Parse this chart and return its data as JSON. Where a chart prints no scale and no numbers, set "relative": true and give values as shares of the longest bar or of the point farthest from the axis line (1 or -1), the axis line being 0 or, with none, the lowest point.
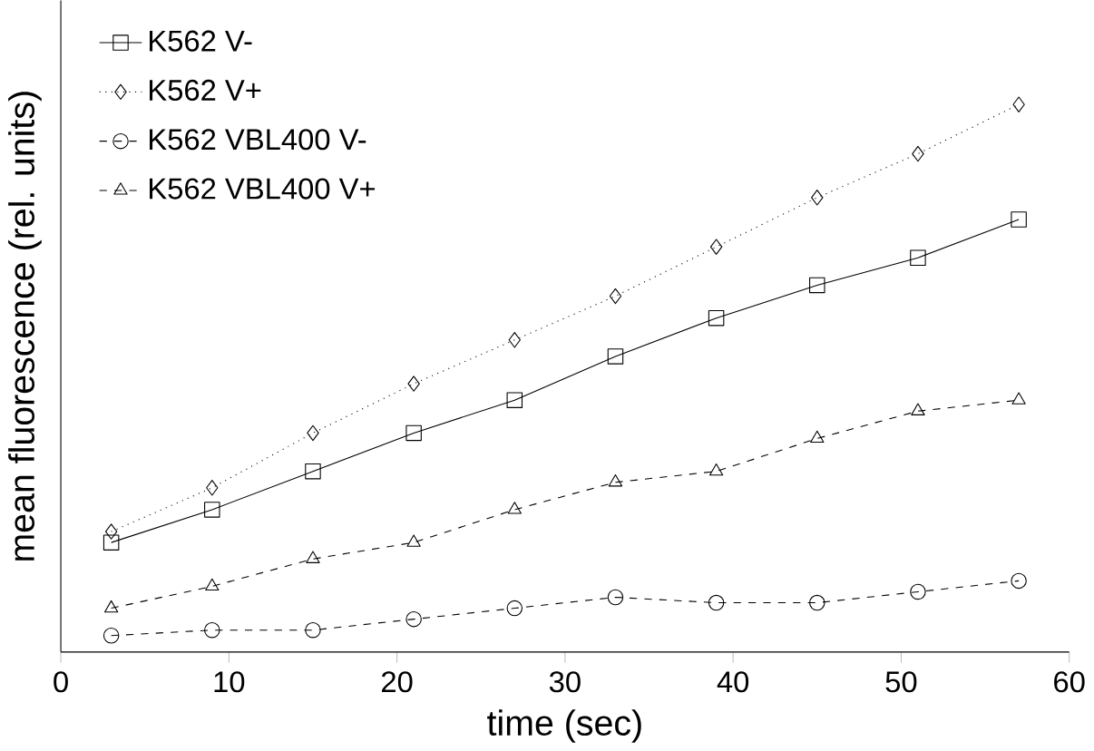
{
  "chart_data": {
    "type": "line",
    "xlabel": "time (sec)",
    "ylabel": "mean fluorescence (rel. units)",
    "relative": true,
    "x": [
      3,
      9,
      15,
      21,
      27,
      33,
      39,
      45,
      51,
      57
    ],
    "xlim": [
      0,
      60
    ],
    "xticks": [
      0,
      10,
      20,
      30,
      40,
      50,
      60
    ],
    "legend": "top left",
    "series": [
      {
        "name": "K562 V-",
        "color": "#000000",
        "marker": "square",
        "line_style": "solid",
        "values": [
          0.2,
          0.26,
          0.33,
          0.4,
          0.46,
          0.54,
          0.61,
          0.67,
          0.72,
          0.79
        ]
      },
      {
        "name": "K562 V+",
        "color": "#000000",
        "marker": "diamond",
        "line_style": "dotted",
        "values": [
          0.22,
          0.3,
          0.4,
          0.49,
          0.57,
          0.65,
          0.74,
          0.83,
          0.91,
          1
        ]
      },
      {
        "name": "K562 VBL400 V-",
        "color": "#000000",
        "marker": "circle",
        "line_style": "dashed",
        "values": [
          0.03,
          0.04,
          0.04,
          0.06,
          0.08,
          0.1,
          0.09,
          0.09,
          0.11,
          0.13
        ]
      },
      {
        "name": "K562 VBL400 V+",
        "color": "#000000",
        "marker": "triangle",
        "line_style": "dashed",
        "values": [
          0.08,
          0.12,
          0.17,
          0.2,
          0.26,
          0.31,
          0.33,
          0.39,
          0.44,
          0.46
        ]
      }
    ]
  }
}
